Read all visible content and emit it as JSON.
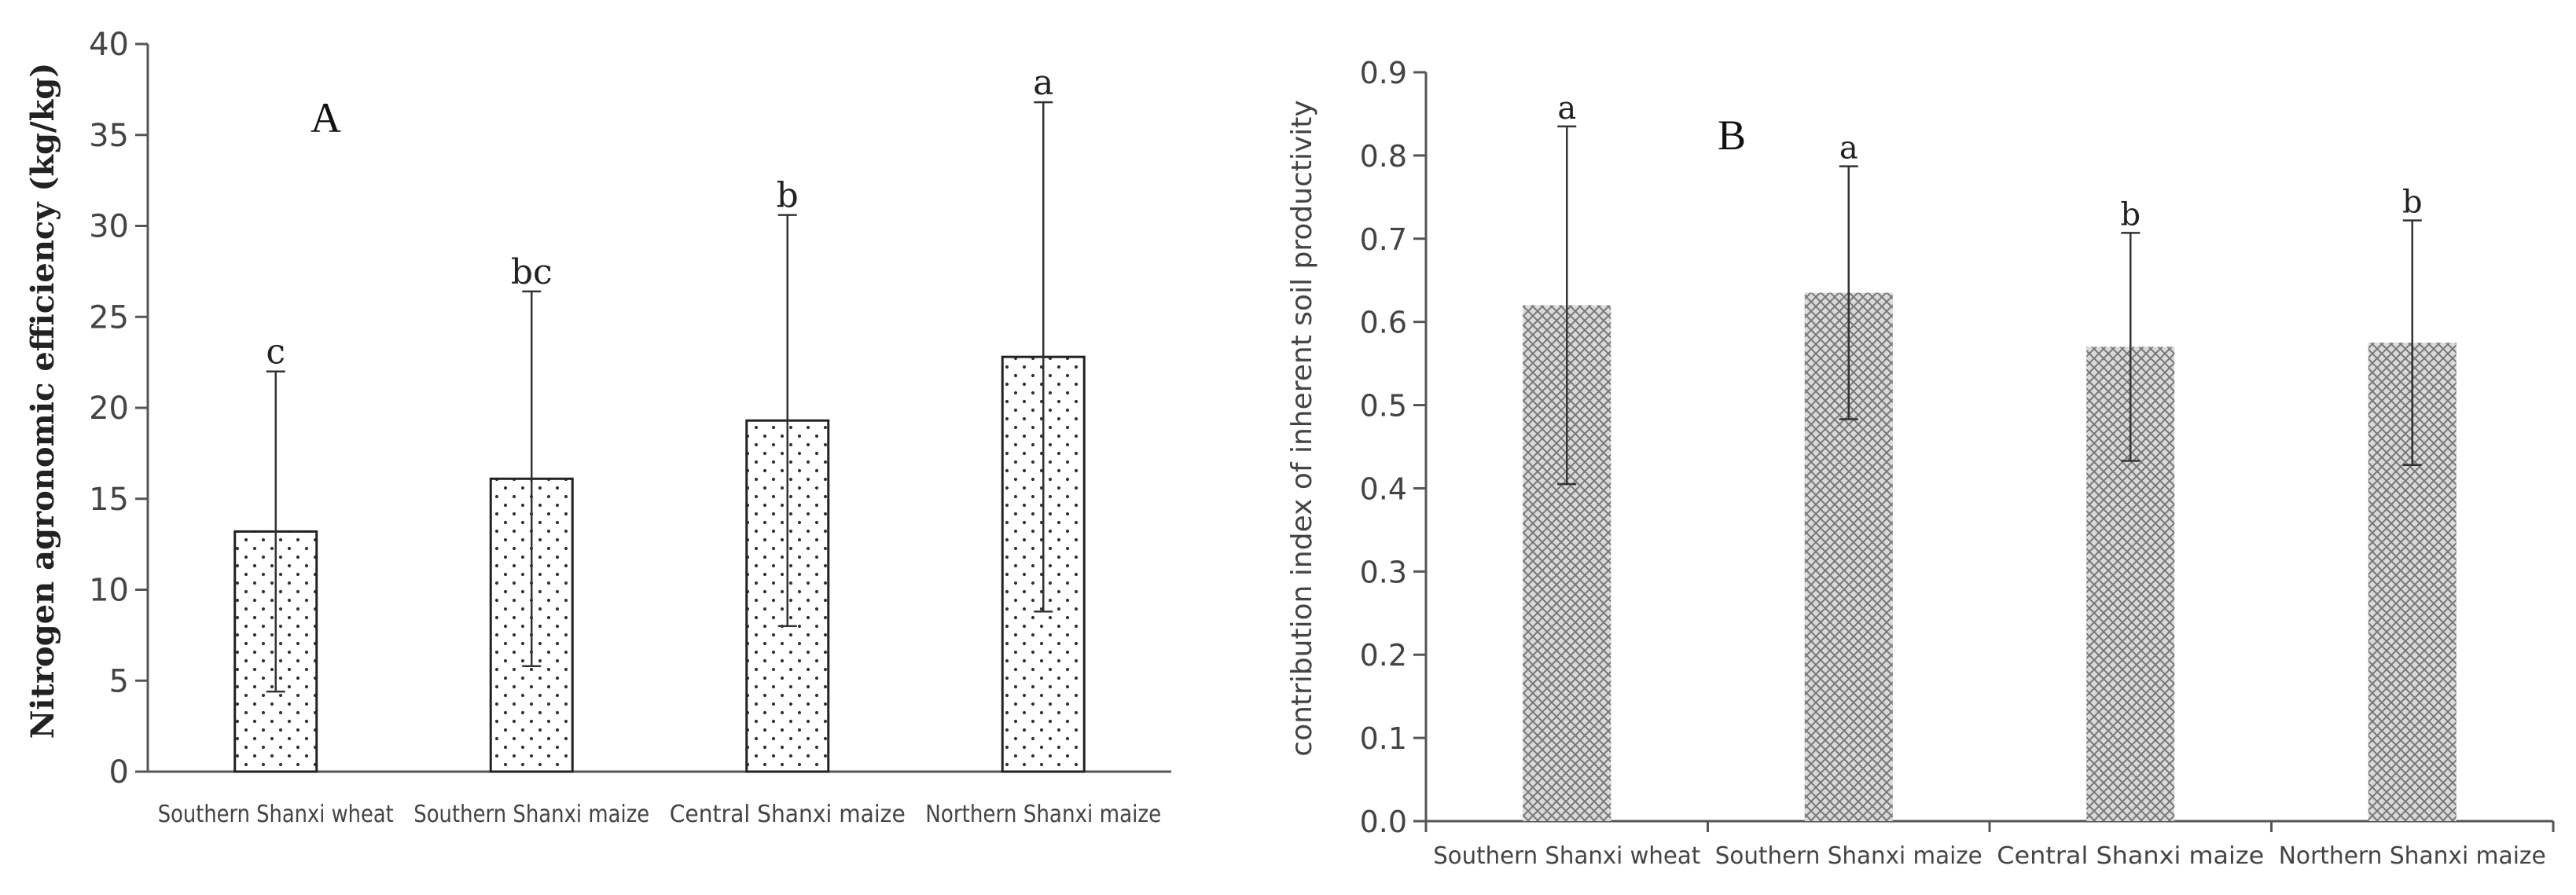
{
  "chart_data": [
    {
      "type": "bar",
      "panel_label": "A",
      "categories": [
        "Southern Shanxi wheat",
        "Southern Shanxi maize",
        "Central Shanxi maize",
        "Northern Shanxi maize"
      ],
      "values": [
        13.2,
        16.1,
        19.3,
        22.8
      ],
      "error": [
        8.8,
        10.3,
        11.3,
        14.0
      ],
      "significance": [
        "c",
        "bc",
        "b",
        "a"
      ],
      "ylabel": "Nitrogen agronomic efficiency (kg/kg)",
      "xlabel": "",
      "ylim": [
        0,
        40
      ],
      "yticks": [
        "0",
        "5",
        "10",
        "15",
        "20",
        "25",
        "30",
        "35",
        "40"
      ],
      "bar_pattern": "dots",
      "grid": false
    },
    {
      "type": "bar",
      "panel_label": "B",
      "categories": [
        "Southern Shanxi wheat",
        "Southern Shanxi maize",
        "Central Shanxi maize",
        "Northern Shanxi maize"
      ],
      "values": [
        0.62,
        0.635,
        0.57,
        0.575
      ],
      "error": [
        0.215,
        0.152,
        0.137,
        0.147
      ],
      "significance": [
        "a",
        "a",
        "b",
        "b"
      ],
      "ylabel": "contribution index of inherent soil productivity",
      "xlabel": "",
      "ylim": [
        0,
        0.9
      ],
      "yticks": [
        "0.0",
        "0.1",
        "0.2",
        "0.3",
        "0.4",
        "0.5",
        "0.6",
        "0.7",
        "0.8",
        "0.9"
      ],
      "bar_pattern": "crosshatch",
      "grid": false
    }
  ]
}
